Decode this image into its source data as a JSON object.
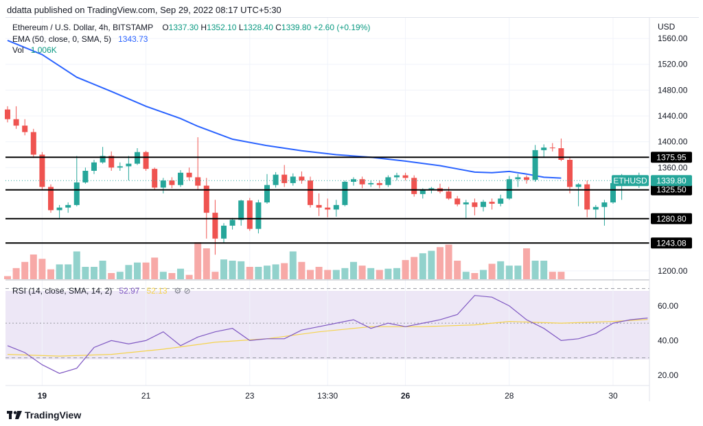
{
  "header": {
    "published": "ddatta published on TradingView.com, Sep 29, 2022 08:17 UTC+5:30"
  },
  "legend": {
    "title": "Ethereum / U.S. Dollar, 4h, BITSTAMP",
    "open_label": "O",
    "open": "1337.30",
    "high_label": "H",
    "high": "1352.10",
    "low_label": "L",
    "low": "1328.40",
    "close_label": "C",
    "close": "1339.80",
    "change": "+2.60 (+0.19%)",
    "ema_label": "EMA (50, close, 0, SMA, 5)",
    "ema_value": "1343.73",
    "vol_label": "Vol",
    "vol_value": "1.006K",
    "rsi_label": "RSI (14, close, SMA, 14, 2)",
    "rsi_value": "52.97",
    "rsi_sma_value": "52.13"
  },
  "axis": {
    "currency": "USD"
  },
  "footer": {
    "brand": "TradingView"
  },
  "colors": {
    "up": "#26a69a",
    "down": "#ef5350",
    "vol_up": "#92d2cc",
    "vol_down": "#f7a9a7",
    "ema": "#2962ff",
    "rsi": "#7e57c2",
    "rsi_sma": "#f5d34b",
    "rsi_band": "#ede7f6",
    "level": "#000000",
    "tag": "#26a69a"
  },
  "chart_data": [
    {
      "type": "candlestick",
      "title": "Ethereum / U.S. Dollar, 4h, BITSTAMP",
      "x_ticks": [
        {
          "label": "19",
          "bar": 4,
          "bold": true
        },
        {
          "label": "21",
          "bar": 16,
          "bold": false
        },
        {
          "label": "23",
          "bar": 28,
          "bold": false
        },
        {
          "label": "13:30",
          "bar": 37,
          "bold": false
        },
        {
          "label": "26",
          "bar": 46,
          "bold": true
        },
        {
          "label": "28",
          "bar": 58,
          "bold": false
        },
        {
          "label": "30",
          "bar": 70,
          "bold": false
        }
      ],
      "y_ticks": [
        "1560.00",
        "1520.00",
        "1480.00",
        "1440.00",
        "1400.00",
        "1360.00",
        "1200.00"
      ],
      "ylim": [
        1186,
        1592
      ],
      "candles": [
        [
          1450,
          1455,
          1430,
          1435
        ],
        [
          1435,
          1455,
          1420,
          1425
        ],
        [
          1425,
          1435,
          1410,
          1415
        ],
        [
          1415,
          1420,
          1375,
          1380
        ],
        [
          1380,
          1384,
          1325,
          1330
        ],
        [
          1330,
          1334,
          1290,
          1294
        ],
        [
          1294,
          1302,
          1282,
          1298
        ],
        [
          1298,
          1306,
          1290,
          1302
        ],
        [
          1302,
          1378,
          1300,
          1337
        ],
        [
          1337,
          1360,
          1335,
          1355
        ],
        [
          1355,
          1372,
          1350,
          1368
        ],
        [
          1368,
          1392,
          1366,
          1378
        ],
        [
          1378,
          1385,
          1355,
          1360
        ],
        [
          1360,
          1368,
          1355,
          1362
        ],
        [
          1362,
          1378,
          1340,
          1366
        ],
        [
          1366,
          1390,
          1364,
          1384
        ],
        [
          1384,
          1386,
          1355,
          1358
        ],
        [
          1358,
          1360,
          1325,
          1329
        ],
        [
          1329,
          1344,
          1320,
          1340
        ],
        [
          1340,
          1345,
          1328,
          1333
        ],
        [
          1333,
          1356,
          1330,
          1352
        ],
        [
          1352,
          1360,
          1340,
          1345
        ],
        [
          1345,
          1407,
          1325,
          1332
        ],
        [
          1332,
          1344,
          1250,
          1290
        ],
        [
          1290,
          1310,
          1225,
          1250
        ],
        [
          1250,
          1274,
          1244,
          1270
        ],
        [
          1270,
          1282,
          1264,
          1279
        ],
        [
          1279,
          1310,
          1270,
          1309
        ],
        [
          1309,
          1313,
          1262,
          1265
        ],
        [
          1265,
          1310,
          1258,
          1306
        ],
        [
          1306,
          1350,
          1304,
          1333
        ],
        [
          1333,
          1353,
          1329,
          1349
        ],
        [
          1349,
          1364,
          1330,
          1336
        ],
        [
          1336,
          1351,
          1332,
          1346
        ],
        [
          1346,
          1354,
          1335,
          1340
        ],
        [
          1340,
          1346,
          1298,
          1302
        ],
        [
          1302,
          1320,
          1285,
          1298
        ],
        [
          1298,
          1312,
          1283,
          1295
        ],
        [
          1295,
          1310,
          1284,
          1302
        ],
        [
          1302,
          1340,
          1300,
          1338
        ],
        [
          1338,
          1345,
          1332,
          1342
        ],
        [
          1342,
          1346,
          1328,
          1334
        ],
        [
          1334,
          1340,
          1330,
          1336
        ],
        [
          1336,
          1340,
          1328,
          1333
        ],
        [
          1333,
          1348,
          1330,
          1345
        ],
        [
          1345,
          1352,
          1340,
          1348
        ],
        [
          1348,
          1352,
          1340,
          1344
        ],
        [
          1344,
          1348,
          1315,
          1319
        ],
        [
          1319,
          1328,
          1312,
          1326
        ],
        [
          1326,
          1330,
          1320,
          1328
        ],
        [
          1328,
          1335,
          1320,
          1323
        ],
        [
          1323,
          1330,
          1310,
          1312
        ],
        [
          1312,
          1316,
          1300,
          1303
        ],
        [
          1303,
          1310,
          1282,
          1306
        ],
        [
          1306,
          1312,
          1286,
          1299
        ],
        [
          1299,
          1310,
          1292,
          1307
        ],
        [
          1307,
          1312,
          1295,
          1304
        ],
        [
          1304,
          1318,
          1300,
          1312
        ],
        [
          1312,
          1347,
          1310,
          1342
        ],
        [
          1342,
          1350,
          1330,
          1345
        ],
        [
          1345,
          1348,
          1335,
          1341
        ],
        [
          1341,
          1395,
          1338,
          1387
        ],
        [
          1387,
          1396,
          1376,
          1391
        ],
        [
          1391,
          1398,
          1385,
          1390
        ],
        [
          1390,
          1405,
          1370,
          1372
        ],
        [
          1372,
          1376,
          1320,
          1330
        ],
        [
          1330,
          1336,
          1300,
          1334
        ],
        [
          1334,
          1340,
          1283,
          1295
        ],
        [
          1295,
          1302,
          1282,
          1299
        ],
        [
          1299,
          1310,
          1270,
          1306
        ],
        [
          1306,
          1340,
          1304,
          1336
        ],
        [
          1336,
          1350,
          1310,
          1339
        ],
        [
          1339,
          1342,
          1333,
          1337
        ],
        [
          1337.3,
          1352.1,
          1328.4,
          1339.8
        ]
      ],
      "ema": [
        [
          0,
          1557
        ],
        [
          4,
          1535
        ],
        [
          8,
          1500
        ],
        [
          12,
          1478
        ],
        [
          16,
          1455
        ],
        [
          20,
          1436
        ],
        [
          22,
          1424
        ],
        [
          26,
          1404
        ],
        [
          30,
          1394
        ],
        [
          34,
          1386
        ],
        [
          38,
          1380
        ],
        [
          42,
          1376
        ],
        [
          46,
          1370
        ],
        [
          50,
          1363
        ],
        [
          52,
          1358
        ],
        [
          54,
          1353
        ],
        [
          56,
          1352
        ],
        [
          58,
          1354
        ],
        [
          60,
          1350
        ],
        [
          62,
          1345
        ],
        [
          64,
          1343.7
        ]
      ],
      "volume": [
        [
          0,
          0.05
        ],
        [
          1,
          0.18
        ],
        [
          2,
          0.28
        ],
        [
          3,
          0.4
        ],
        [
          4,
          0.33
        ],
        [
          5,
          0.16
        ],
        [
          6,
          0.24
        ],
        [
          7,
          0.24
        ],
        [
          8,
          0.45
        ],
        [
          9,
          0.2
        ],
        [
          10,
          0.2
        ],
        [
          11,
          0.3
        ],
        [
          12,
          0.1
        ],
        [
          13,
          0.12
        ],
        [
          14,
          0.23
        ],
        [
          15,
          0.27
        ],
        [
          16,
          0.27
        ],
        [
          17,
          0.35
        ],
        [
          18,
          0.12
        ],
        [
          19,
          0.1
        ],
        [
          20,
          0.17
        ],
        [
          21,
          0.07
        ],
        [
          22,
          0.6
        ],
        [
          23,
          0.5
        ],
        [
          24,
          0.12
        ],
        [
          25,
          0.32
        ],
        [
          26,
          0.3
        ],
        [
          27,
          0.29
        ],
        [
          28,
          0.2
        ],
        [
          29,
          0.2
        ],
        [
          30,
          0.22
        ],
        [
          31,
          0.24
        ],
        [
          32,
          0.26
        ],
        [
          33,
          0.45
        ],
        [
          34,
          0.28
        ],
        [
          35,
          0.15
        ],
        [
          36,
          0.2
        ],
        [
          37,
          0.15
        ],
        [
          38,
          0.15
        ],
        [
          39,
          0.18
        ],
        [
          40,
          0.28
        ],
        [
          41,
          0.22
        ],
        [
          42,
          0.18
        ],
        [
          43,
          0.15
        ],
        [
          44,
          0.17
        ],
        [
          45,
          0.18
        ],
        [
          46,
          0.31
        ],
        [
          47,
          0.36
        ],
        [
          48,
          0.42
        ],
        [
          49,
          0.46
        ],
        [
          50,
          0.52
        ],
        [
          51,
          0.56
        ],
        [
          52,
          0.3
        ],
        [
          53,
          0.12
        ],
        [
          54,
          0.1
        ],
        [
          55,
          0.15
        ],
        [
          56,
          0.25
        ],
        [
          57,
          0.29
        ],
        [
          58,
          0.22
        ],
        [
          59,
          0.22
        ],
        [
          60,
          0.5
        ],
        [
          61,
          0.3
        ],
        [
          62,
          0.3
        ],
        [
          63,
          0.12
        ],
        [
          64,
          0.12
        ]
      ],
      "levels": [
        {
          "price": 1375.95,
          "label": "1375.95"
        },
        {
          "price": 1325.5,
          "label": "1325.50"
        },
        {
          "price": 1280.8,
          "label": "1280.80"
        },
        {
          "price": 1243.08,
          "label": "1243.08"
        }
      ],
      "last_price": {
        "symbol": "ETHUSD",
        "value": "1339.80",
        "price": 1339.8
      }
    },
    {
      "type": "line",
      "title": "RSI (14, close, SMA, 14, 2)",
      "ylim": [
        14,
        75
      ],
      "y_ticks": [
        "60.00",
        "40.00",
        "20.00"
      ],
      "bands": [
        70,
        50,
        30
      ],
      "series": [
        {
          "name": "RSI",
          "values": [
            [
              0,
              37
            ],
            [
              2,
              33
            ],
            [
              4,
              26
            ],
            [
              6,
              21
            ],
            [
              8,
              24
            ],
            [
              10,
              36
            ],
            [
              12,
              40
            ],
            [
              14,
              38
            ],
            [
              16,
              40
            ],
            [
              18,
              45
            ],
            [
              20,
              37
            ],
            [
              22,
              42
            ],
            [
              24,
              45
            ],
            [
              26,
              47
            ],
            [
              28,
              40
            ],
            [
              30,
              41
            ],
            [
              32,
              41
            ],
            [
              34,
              46
            ],
            [
              36,
              48
            ],
            [
              38,
              50
            ],
            [
              40,
              52
            ],
            [
              42,
              47
            ],
            [
              44,
              50
            ],
            [
              46,
              48
            ],
            [
              48,
              50
            ],
            [
              50,
              52
            ],
            [
              52,
              55
            ],
            [
              54,
              66
            ],
            [
              56,
              65
            ],
            [
              58,
              60
            ],
            [
              60,
              52
            ],
            [
              62,
              47
            ],
            [
              64,
              40
            ],
            [
              66,
              41
            ],
            [
              68,
              44
            ],
            [
              70,
              50
            ],
            [
              72,
              52
            ],
            [
              74,
              52.97
            ]
          ]
        },
        {
          "name": "RSI SMA",
          "values": [
            [
              0,
              32
            ],
            [
              6,
              31
            ],
            [
              12,
              32
            ],
            [
              18,
              35
            ],
            [
              24,
              39
            ],
            [
              30,
              41
            ],
            [
              36,
              45
            ],
            [
              42,
              48
            ],
            [
              48,
              48
            ],
            [
              54,
              49
            ],
            [
              58,
              51
            ],
            [
              64,
              50
            ],
            [
              70,
              51
            ],
            [
              74,
              52.13
            ]
          ]
        }
      ]
    }
  ]
}
